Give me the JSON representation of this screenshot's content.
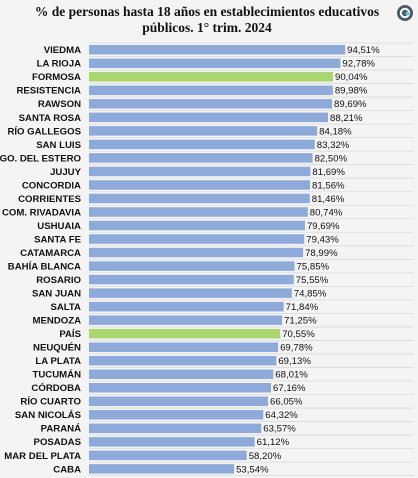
{
  "chart_data": {
    "type": "bar",
    "orientation": "horizontal",
    "title_line1": "% de personas hasta 18 años en establecimientos educativos",
    "title_line2": "públicos. 1° trim. 2024",
    "xlim": [
      0,
      100
    ],
    "grid": true,
    "categories": [
      "VIEDMA",
      "LA RIOJA",
      "FORMOSA",
      "RESISTENCIA",
      "RAWSON",
      "SANTA ROSA",
      "RÍO GALLEGOS",
      "SAN LUIS",
      "SGO. DEL ESTERO",
      "JUJUY",
      "CONCORDIA",
      "CORRIENTES",
      "COM. RIVADAVIA",
      "USHUAIA",
      "SANTA FE",
      "CATAMARCA",
      "BAHÍA BLANCA",
      "ROSARIO",
      "SAN JUAN",
      "SALTA",
      "MENDOZA",
      "PAÍS",
      "NEUQUÉN",
      "LA PLATA",
      "TUCUMÁN",
      "CÓRDOBA",
      "RÍO CUARTO",
      "SAN NICOLÁS",
      "PARANÁ",
      "POSADAS",
      "MAR DEL PLATA",
      "CABA"
    ],
    "values": [
      94.51,
      92.78,
      90.04,
      89.98,
      89.69,
      88.21,
      84.18,
      83.32,
      82.5,
      81.69,
      81.56,
      81.46,
      80.74,
      79.69,
      79.43,
      78.99,
      75.85,
      75.55,
      74.85,
      71.84,
      71.25,
      70.55,
      69.78,
      69.13,
      68.01,
      67.16,
      66.05,
      64.32,
      63.57,
      61.12,
      58.2,
      53.54
    ],
    "value_labels": [
      "94,51%",
      "92,78%",
      "90,04%",
      "89,98%",
      "89,69%",
      "88,21%",
      "84,18%",
      "83,32%",
      "82,50%",
      "81,69%",
      "81,56%",
      "81,46%",
      "80,74%",
      "79,69%",
      "79,43%",
      "78,99%",
      "75,85%",
      "75,55%",
      "74,85%",
      "71,84%",
      "71,25%",
      "70,55%",
      "69,78%",
      "69,13%",
      "68,01%",
      "67,16%",
      "66,05%",
      "64,32%",
      "63,57%",
      "61,12%",
      "58,20%",
      "53,54%"
    ],
    "highlighted": [
      "FORMOSA",
      "PAÍS"
    ],
    "colors": {
      "bar": "#8eaadb",
      "highlight": "#a9d66e",
      "grid": "#d9d9d9",
      "text": "#111111"
    }
  }
}
